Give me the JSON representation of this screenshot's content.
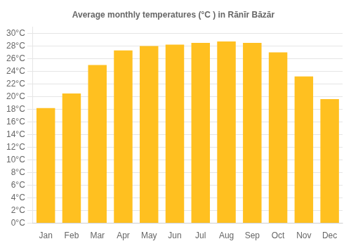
{
  "chart_data": {
    "type": "bar",
    "title": "Average monthly temperatures (°C ) in Rānīr Bāzār",
    "categories": [
      "Jan",
      "Feb",
      "Mar",
      "Apr",
      "May",
      "Jun",
      "Jul",
      "Aug",
      "Sep",
      "Oct",
      "Nov",
      "Dec"
    ],
    "values": [
      18.2,
      20.5,
      25.0,
      27.3,
      28.0,
      28.2,
      28.5,
      28.7,
      28.5,
      27.0,
      23.2,
      19.6
    ],
    "color": "#FFC020",
    "ylim": [
      0,
      31
    ],
    "yticks": [
      {
        "value": 0,
        "label": "0°C"
      },
      {
        "value": 2,
        "label": "2°C"
      },
      {
        "value": 4,
        "label": "4°C"
      },
      {
        "value": 6,
        "label": "6°C"
      },
      {
        "value": 8,
        "label": "8°C"
      },
      {
        "value": 10,
        "label": "10°C"
      },
      {
        "value": 12,
        "label": "12°C"
      },
      {
        "value": 14,
        "label": "14°C"
      },
      {
        "value": 16,
        "label": "16°C"
      },
      {
        "value": 18,
        "label": "18°C"
      },
      {
        "value": 20,
        "label": "20°C"
      },
      {
        "value": 22,
        "label": "22°C"
      },
      {
        "value": 24,
        "label": "24°C"
      },
      {
        "value": 26,
        "label": "26°C"
      },
      {
        "value": 28,
        "label": "28°C"
      },
      {
        "value": 30,
        "label": "30°C"
      }
    ],
    "grid": true
  }
}
